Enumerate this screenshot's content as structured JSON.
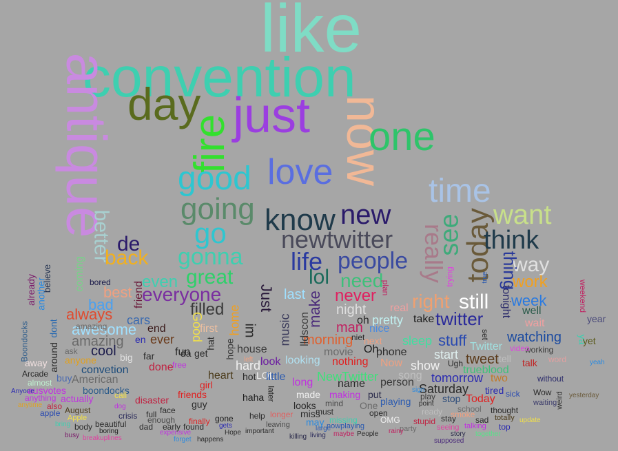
{
  "words": [
    {
      "text": "like",
      "color": "#7fdcc5"
    },
    {
      "text": "convention",
      "color": "#3ecfb0"
    },
    {
      "text": "antique",
      "color": "#c98ae0"
    },
    {
      "text": "day",
      "color": "#5a6b1e"
    },
    {
      "text": "just",
      "color": "#9b3ee0"
    },
    {
      "text": "fire",
      "color": "#33e02e"
    },
    {
      "text": "now",
      "color": "#f1b896"
    },
    {
      "text": "one",
      "color": "#2ec46a"
    },
    {
      "text": "love",
      "color": "#5a6ee0"
    },
    {
      "text": "good",
      "color": "#2ec6d0"
    },
    {
      "text": "time",
      "color": "#a9c3e6"
    },
    {
      "text": "going",
      "color": "#5a8a6a"
    },
    {
      "text": "go",
      "color": "#2ec6d0"
    },
    {
      "text": "know",
      "color": "#1f3a4a"
    },
    {
      "text": "new",
      "color": "#2a1a6a"
    },
    {
      "text": "want",
      "color": "#c8e08a"
    },
    {
      "text": "today",
      "color": "#6a5a3a"
    },
    {
      "text": "see",
      "color": "#3eaa7a"
    },
    {
      "text": "really",
      "color": "#a87a8a"
    },
    {
      "text": "better",
      "color": "#a8d0d0"
    },
    {
      "text": "newtwitter",
      "color": "#4a4a5a"
    },
    {
      "text": "think",
      "color": "#1f3a4a"
    },
    {
      "text": "de",
      "color": "#2a1a6a"
    },
    {
      "text": "back",
      "color": "#f1b020"
    },
    {
      "text": "gonna",
      "color": "#3ecfb0"
    },
    {
      "text": "life",
      "color": "#2a3aa0"
    },
    {
      "text": "people",
      "color": "#3a4aa0"
    },
    {
      "text": "way",
      "color": "#e0e0e0"
    },
    {
      "text": "great",
      "color": "#2ed06a"
    },
    {
      "text": "lol",
      "color": "#1a6a5a"
    },
    {
      "text": "need",
      "color": "#3ec07a"
    },
    {
      "text": "thing",
      "color": "#2a3a9a"
    },
    {
      "text": "work",
      "color": "#f1a020"
    },
    {
      "text": "everyone",
      "color": "#7a2ea0"
    },
    {
      "text": "still",
      "color": "#ffffff"
    },
    {
      "text": "right",
      "color": "#f0a070"
    },
    {
      "text": "never",
      "color": "#e02060"
    },
    {
      "text": "week",
      "color": "#2a7ae0"
    },
    {
      "text": "always",
      "color": "#e04a2e"
    },
    {
      "text": "filled",
      "color": "#3a3a3a"
    },
    {
      "text": "awesome",
      "color": "#a0e0ff"
    },
    {
      "text": "twitter",
      "color": "#2a2a9a"
    },
    {
      "text": "amazing",
      "color": "#6a6a6a"
    },
    {
      "text": "watching",
      "color": "#1a4aa0"
    },
    {
      "text": "morning",
      "color": "#e0602e"
    },
    {
      "text": "stuff",
      "color": "#2a4ab0"
    },
    {
      "text": "cool",
      "color": "#1a1a4a"
    },
    {
      "text": "tweet",
      "color": "#5a3a1a"
    },
    {
      "text": "convetion",
      "color": "#1a4a7a"
    },
    {
      "text": "NewTwitter",
      "color": "#3ee07a"
    },
    {
      "text": "tomorrow",
      "color": "#2a2ab0"
    },
    {
      "text": "Saturday",
      "color": "#2a2a2a"
    },
    {
      "text": "Today",
      "color": "#e02020"
    },
    {
      "text": "boondocks",
      "color": "#2a5a8a"
    },
    {
      "text": "Arcade",
      "color": "#2a2a2a"
    },
    {
      "text": "Boondocks",
      "color": "#2a5a8a"
    },
    {
      "text": "haha",
      "color": "#1a1a1a"
    },
    {
      "text": "crisis",
      "color": "#2a2a5a"
    },
    {
      "text": "August",
      "color": "#4a3a1a"
    },
    {
      "text": "Apple",
      "color": "#f1e04a"
    },
    {
      "text": "gone",
      "color": "#1a1a1a"
    },
    {
      "text": "Hope",
      "color": "#2a2a2a"
    },
    {
      "text": "important",
      "color": "#2a2a2a"
    },
    {
      "text": "living",
      "color": "#2a2a5a"
    },
    {
      "text": "People",
      "color": "#2a2a2a"
    },
    {
      "text": "story",
      "color": "#2a2a4a"
    },
    {
      "text": "together",
      "color": "#5ae08a"
    },
    {
      "text": "supposed",
      "color": "#4a2a7a"
    },
    {
      "text": "happens",
      "color": "#2a2a2a"
    },
    {
      "text": "expensive",
      "color": "#c030e0"
    },
    {
      "text": "busy",
      "color": "#7a1a6a"
    },
    {
      "text": "breakuplines",
      "color": "#e040a0"
    },
    {
      "text": "boring",
      "color": "#1a1a1a"
    },
    {
      "text": "yesterday",
      "color": "#6a5a3a"
    },
    {
      "text": "waiting",
      "color": "#3a3a6a"
    },
    {
      "text": "without",
      "color": "#2a2a6a"
    },
    {
      "text": "working",
      "color": "#3a3a3a"
    },
    {
      "text": "bored",
      "color": "#1a1a4a"
    },
    {
      "text": "best",
      "color": "#f1a080"
    },
    {
      "text": "bad",
      "color": "#4aa0f0"
    },
    {
      "text": "even",
      "color": "#3ecfb0"
    },
    {
      "text": "cars",
      "color": "#3a6ab0"
    },
    {
      "text": "end",
      "color": "#3a1a1a"
    },
    {
      "text": "ever",
      "color": "#6a3a1a"
    },
    {
      "text": "fun",
      "color": "#2a2a2a"
    },
    {
      "text": "hard",
      "color": "#f0f0f0"
    },
    {
      "text": "look",
      "color": "#6a1aa0"
    },
    {
      "text": "looking",
      "color": "#b0e0f0"
    },
    {
      "text": "nothing",
      "color": "#e02020"
    },
    {
      "text": "name",
      "color": "#2a2a2a"
    },
    {
      "text": "person",
      "color": "#3a3a3a"
    },
    {
      "text": "show",
      "color": "#f0f0f0"
    },
    {
      "text": "start",
      "color": "#e0f0f0"
    },
    {
      "text": "sleep",
      "color": "#3ee0a0"
    },
    {
      "text": "pretty",
      "color": "#c0f0f0"
    },
    {
      "text": "take",
      "color": "#1a1a1a"
    },
    {
      "text": "real",
      "color": "#f0a0a0"
    },
    {
      "text": "night",
      "color": "#e0e0e0"
    },
    {
      "text": "oh",
      "color": "#2a2a2a"
    },
    {
      "text": "man",
      "color": "#c02060"
    },
    {
      "text": "nice",
      "color": "#4a8ae0"
    },
    {
      "text": "phone",
      "color": "#2a2a2a"
    },
    {
      "text": "trueblood",
      "color": "#3ec07a"
    },
    {
      "text": "two",
      "color": "#c07a2a"
    },
    {
      "text": "Twitter",
      "color": "#a0e0e0"
    },
    {
      "text": "tired",
      "color": "#2a2ab0"
    },
    {
      "text": "playing",
      "color": "#2a5ab0"
    },
    {
      "text": "stop",
      "color": "#2a4a7a"
    },
    {
      "text": "music",
      "color": "#3a3a5a"
    },
    {
      "text": "movie",
      "color": "#6a6a6a"
    },
    {
      "text": "make",
      "color": "#4a2a7a"
    },
    {
      "text": "last",
      "color": "#a0e0ff"
    },
    {
      "text": "lldscon",
      "color": "#3a3a3a"
    },
    {
      "text": "home",
      "color": "#f1a020"
    },
    {
      "text": "wait",
      "color": "#f1a0a0"
    },
    {
      "text": "well",
      "color": "#2a5a4a"
    },
    {
      "text": "first",
      "color": "#f0c0a0"
    },
    {
      "text": "heart",
      "color": "#4a3a1a"
    },
    {
      "text": "friends",
      "color": "#e02020"
    },
    {
      "text": "disaster",
      "color": "#c02040"
    },
    {
      "text": "actually",
      "color": "#c030e0"
    },
    {
      "text": "anything",
      "color": "#c030e0"
    },
    {
      "text": "ausvotes",
      "color": "#c030e0"
    },
    {
      "text": "American",
      "color": "#6a6a6a"
    },
    {
      "text": "anyone",
      "color": "#e0a020"
    },
    {
      "text": "buy",
      "color": "#4a6ab0"
    },
    {
      "text": "already",
      "color": "#7a1a6a"
    },
    {
      "text": "believe",
      "color": "#1a2a4a"
    },
    {
      "text": "almost",
      "color": "#c0f0d0"
    },
    {
      "text": "Anyone",
      "color": "#2a2ab0"
    },
    {
      "text": "finally",
      "color": "#e02020"
    },
    {
      "text": "guy",
      "color": "#2a2a2a"
    },
    {
      "text": "girl",
      "color": "#e02020"
    },
    {
      "text": "help",
      "color": "#2a2a2a"
    },
    {
      "text": "longer",
      "color": "#e06060"
    },
    {
      "text": "must",
      "color": "#2a2a2a"
    },
    {
      "text": "looks",
      "color": "#2a2a2a"
    },
    {
      "text": "making",
      "color": "#c030e0"
    },
    {
      "text": "put",
      "color": "#2a2a4a"
    },
    {
      "text": "mind",
      "color": "#4a4a4a"
    },
    {
      "text": "One",
      "color": "#6a6a6a"
    },
    {
      "text": "OMG",
      "color": "#f0f0f0"
    },
    {
      "text": "stupid",
      "color": "#c02040"
    },
    {
      "text": "stay",
      "color": "#2a2a2a"
    },
    {
      "text": "sad",
      "color": "#2a2a2a"
    },
    {
      "text": "totally",
      "color": "#4a3a1a"
    },
    {
      "text": "thought",
      "color": "#2a2a2a"
    },
    {
      "text": "school",
      "color": "#6a6a6a"
    },
    {
      "text": "smoke",
      "color": "#f0a080"
    },
    {
      "text": "ready",
      "color": "#c0c0c0"
    },
    {
      "text": "play",
      "color": "#3a3a3a"
    },
    {
      "text": "song",
      "color": "#c0c0c0"
    },
    {
      "text": "hope",
      "color": "#3a3a3a"
    },
    {
      "text": "house",
      "color": "#3a3a3a"
    },
    {
      "text": "dad",
      "color": "#2a2a2a"
    },
    {
      "text": "beautiful",
      "color": "#2a2a2a"
    },
    {
      "text": "face",
      "color": "#2a2a2a"
    },
    {
      "text": "full",
      "color": "#2a2a2a"
    },
    {
      "text": "enough",
      "color": "#4a4a4a"
    },
    {
      "text": "done",
      "color": "#c02040"
    },
    {
      "text": "en",
      "color": "#2a2ab0"
    },
    {
      "text": "far",
      "color": "#2a2a2a"
    },
    {
      "text": "big",
      "color": "#e0e0e0"
    },
    {
      "text": "friend",
      "color": "#6a1a3a"
    },
    {
      "text": "coming",
      "color": "#7ad08a"
    },
    {
      "text": "another",
      "color": "#2a8ae0"
    },
    {
      "text": "dont",
      "color": "#2a6ab0"
    },
    {
      "text": "ya",
      "color": "#3ecfb0"
    },
    {
      "text": "yet",
      "color": "#5a5a1a"
    },
    {
      "text": "year",
      "color": "#4a4a7a"
    },
    {
      "text": "weekend",
      "color": "#c02060"
    },
    {
      "text": "tonight",
      "color": "#2a2a6a"
    },
    {
      "text": "plan",
      "color": "#c02060"
    },
    {
      "text": "trying",
      "color": "#e040e0"
    },
    {
      "text": "true",
      "color": "#2a5ab0"
    },
    {
      "text": "video",
      "color": "#e040e0"
    },
    {
      "text": "yeah",
      "color": "#2a8ae0"
    },
    {
      "text": "amazing",
      "color": "#6a6a6a"
    },
    {
      "text": "update",
      "color": "#f1e04a"
    },
    {
      "text": "call",
      "color": "#f1e04a"
    },
    {
      "text": "apple",
      "color": "#2a4ab0"
    },
    {
      "text": "also",
      "color": "#c02040"
    },
    {
      "text": "anytime",
      "color": "#e0a020"
    },
    {
      "text": "dog",
      "color": "#c030e0"
    },
    {
      "text": "early",
      "color": "#2a2a2a"
    },
    {
      "text": "found",
      "color": "#2a2a2a"
    },
    {
      "text": "gets",
      "color": "#2a2ab0"
    },
    {
      "text": "nowplaying",
      "color": "#2a5ab0"
    },
    {
      "text": "large",
      "color": "#2a5ab0"
    },
    {
      "text": "leaving",
      "color": "#4a4a4a"
    },
    {
      "text": "killing",
      "color": "#2a2a4a"
    },
    {
      "text": "seeing",
      "color": "#e040a0"
    },
    {
      "text": "talking",
      "color": "#c030e0"
    },
    {
      "text": "top",
      "color": "#2a2ab0"
    },
    {
      "text": "sick",
      "color": "#2a4ab0"
    },
    {
      "text": "Wow",
      "color": "#2a2a2a"
    },
    {
      "text": "weird",
      "color": "#2a2a2a"
    },
    {
      "text": "hot",
      "color": "#2a2a2a"
    },
    {
      "text": "im",
      "color": "#2a2a2a"
    },
    {
      "text": "Just",
      "color": "#2a1a3a"
    },
    {
      "text": "LOL",
      "color": "#f0f0f0"
    },
    {
      "text": "later",
      "color": "#2a2a2a"
    },
    {
      "text": "little",
      "color": "#2a5ab0"
    },
    {
      "text": "long",
      "color": "#c030e0"
    },
    {
      "text": "made",
      "color": "#f0f0f0"
    },
    {
      "text": "niet",
      "color": "#2a2a2a"
    },
    {
      "text": "Now",
      "color": "#f0a080"
    },
    {
      "text": "Oh",
      "color": "#1a1a1a"
    },
    {
      "text": "next",
      "color": "#f0a080"
    },
    {
      "text": "Ugh",
      "color": "#2a2a2a"
    },
    {
      "text": "tell",
      "color": "#c0c0c0"
    },
    {
      "text": "talk",
      "color": "#c02020"
    },
    {
      "text": "word",
      "color": "#e0a0a0"
    },
    {
      "text": "set",
      "color": "#2a2a2a"
    },
    {
      "text": "free",
      "color": "#c030e0"
    },
    {
      "text": "Good",
      "color": "#f1e04a"
    },
    {
      "text": "da",
      "color": "#2a2a2a"
    },
    {
      "text": "get",
      "color": "#2a2a2a"
    },
    {
      "text": "hat",
      "color": "#2a2a2a"
    },
    {
      "text": "left",
      "color": "#f0a080"
    },
    {
      "text": "ask",
      "color": "#6a6a6a"
    },
    {
      "text": "away",
      "color": "#f0e0e0"
    },
    {
      "text": "around",
      "color": "#2a2a2a"
    },
    {
      "text": "bring",
      "color": "#3ecfb0"
    },
    {
      "text": "body",
      "color": "#2a2a2a"
    },
    {
      "text": "forget",
      "color": "#2a8ae0"
    },
    {
      "text": "point",
      "color": "#2a2a2a"
    },
    {
      "text": "sign",
      "color": "#2a8ae0"
    },
    {
      "text": "party",
      "color": "#6a6a6a"
    },
    {
      "text": "maybe",
      "color": "#c02060"
    },
    {
      "text": "may",
      "color": "#2a8ae0"
    },
    {
      "text": "missing",
      "color": "#3ecfb0"
    },
    {
      "text": "miss",
      "color": "#2a2a2a"
    },
    {
      "text": "open",
      "color": "#2a2a2a"
    },
    {
      "text": "rainy",
      "color": "#c02060"
    }
  ]
}
